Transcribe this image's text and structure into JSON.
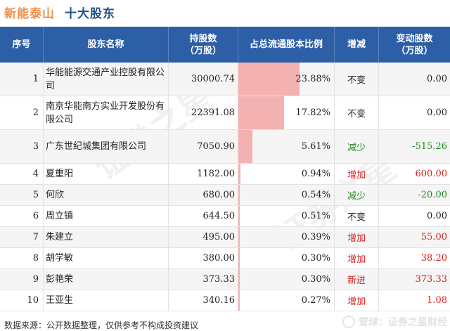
{
  "title": {
    "company": "新能泰山",
    "section": "十大股东"
  },
  "headers": {
    "no": "序号",
    "name": "股东名称",
    "holding": "持股数\n（万股）",
    "pct": "占总流通股本比例",
    "change": "增减",
    "change_amt": "变动股数\n（万股）"
  },
  "rows": [
    {
      "no": "1",
      "name": "华能能源交通产业控股有限公司",
      "holding": "30000.74",
      "pct": "23.88%",
      "pct_value": 23.88,
      "change": "不变",
      "change_type": "flat",
      "change_amt": "0.00"
    },
    {
      "no": "2",
      "name": "南京华能南方实业开发股份有限公司",
      "holding": "22391.08",
      "pct": "17.82%",
      "pct_value": 17.82,
      "change": "不变",
      "change_type": "flat",
      "change_amt": "0.00"
    },
    {
      "no": "3",
      "name": "广东世纪城集团有限公司",
      "holding": "7050.90",
      "pct": "5.61%",
      "pct_value": 5.61,
      "change": "减少",
      "change_type": "down",
      "change_amt": "-515.26"
    },
    {
      "no": "4",
      "name": "夏重阳",
      "holding": "1182.00",
      "pct": "0.94%",
      "pct_value": 0.94,
      "change": "增加",
      "change_type": "up",
      "change_amt": "600.00"
    },
    {
      "no": "5",
      "name": "何欣",
      "holding": "680.00",
      "pct": "0.54%",
      "pct_value": 0.54,
      "change": "减少",
      "change_type": "down",
      "change_amt": "-20.00"
    },
    {
      "no": "6",
      "name": "周立镇",
      "holding": "644.50",
      "pct": "0.51%",
      "pct_value": 0.51,
      "change": "不变",
      "change_type": "flat",
      "change_amt": "0.00"
    },
    {
      "no": "7",
      "name": "朱建立",
      "holding": "495.00",
      "pct": "0.39%",
      "pct_value": 0.39,
      "change": "增加",
      "change_type": "up",
      "change_amt": "55.00"
    },
    {
      "no": "8",
      "name": "胡学敏",
      "holding": "380.00",
      "pct": "0.30%",
      "pct_value": 0.3,
      "change": "增加",
      "change_type": "up",
      "change_amt": "38.20"
    },
    {
      "no": "9",
      "name": "彭艳荣",
      "holding": "373.33",
      "pct": "0.30%",
      "pct_value": 0.3,
      "change": "新进",
      "change_type": "up",
      "change_amt": "373.33"
    },
    {
      "no": "10",
      "name": "王亚生",
      "holding": "340.16",
      "pct": "0.27%",
      "pct_value": 0.27,
      "change": "增加",
      "change_type": "up",
      "change_amt": "1.08"
    }
  ],
  "footer": {
    "source": "数据来源：公开数据整理，仅供参考不构成投资建议"
  },
  "brand": {
    "text": "雪球：证券之星财经"
  },
  "watermark": "证券之星",
  "colors": {
    "header_bg": "#2d5fa6",
    "bar": "#f4b1b1",
    "up": "#d62020",
    "down": "#1f8a1f",
    "title_main": "#f0924a",
    "title_sub": "#1f4f8a"
  }
}
